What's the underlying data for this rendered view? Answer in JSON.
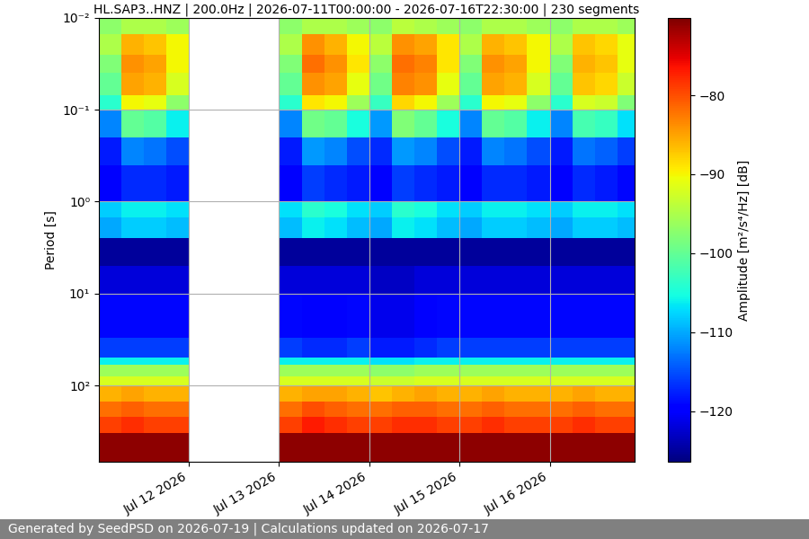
{
  "chart_data": {
    "type": "heatmap",
    "title": "HL.SAP3..HNZ | 200.0Hz | 2026-07-11T00:00:00 - 2026-07-16T22:30:00 | 230 segments",
    "y_label": "Period [s]",
    "log": "y",
    "grid": true,
    "color": "jet",
    "xlim": [
      "2026-07-11T00:00",
      "2026-07-16T22:30"
    ],
    "xticks": [
      {
        "value": "2026-07-12",
        "label": "Jul 12 2026"
      },
      {
        "value": "2026-07-13",
        "label": "Jul 13 2026"
      },
      {
        "value": "2026-07-14",
        "label": "Jul 14 2026"
      },
      {
        "value": "2026-07-15",
        "label": "Jul 15 2026"
      },
      {
        "value": "2026-07-16",
        "label": "Jul 16 2026"
      }
    ],
    "ylim": [
      680,
      0.01
    ],
    "yticks": [
      {
        "value": 0.01,
        "label": "10⁻²"
      },
      {
        "value": 0.1,
        "label": "10⁻¹"
      },
      {
        "value": 1,
        "label": "10⁰"
      },
      {
        "value": 10,
        "label": "10¹"
      },
      {
        "value": 100,
        "label": "10²"
      }
    ],
    "x_edges": [
      "2026-07-11T00:00",
      "2026-07-11T06:00",
      "2026-07-11T12:00",
      "2026-07-11T18:00",
      "2026-07-12T00:00",
      "2026-07-12T06:00",
      "2026-07-12T12:00",
      "2026-07-12T18:00",
      "2026-07-13T00:00",
      "2026-07-13T06:00",
      "2026-07-13T12:00",
      "2026-07-13T18:00",
      "2026-07-14T00:00",
      "2026-07-14T06:00",
      "2026-07-14T12:00",
      "2026-07-14T18:00",
      "2026-07-15T00:00",
      "2026-07-15T06:00",
      "2026-07-15T12:00",
      "2026-07-15T18:00",
      "2026-07-16T00:00",
      "2026-07-16T06:00",
      "2026-07-16T12:00",
      "2026-07-16T18:00",
      "2026-07-16T22:30"
    ],
    "y_edges": [
      0.01,
      0.015,
      0.025,
      0.04,
      0.07,
      0.1,
      0.2,
      0.4,
      1,
      1.5,
      2.5,
      5,
      10,
      30,
      50,
      60,
      80,
      100,
      150,
      220,
      330,
      680
    ],
    "cells": [
      [
        -97,
        -95,
        -95,
        -96,
        null,
        null,
        null,
        null,
        -97,
        -95,
        -95,
        -96,
        -97,
        -94,
        -95,
        -96,
        -97,
        -95,
        -95,
        -96,
        -97,
        -95,
        -95,
        -96
      ],
      [
        -95,
        -86,
        -87,
        -90,
        null,
        null,
        null,
        null,
        -95,
        -84,
        -86,
        -90,
        -94,
        -84,
        -85,
        -89,
        -95,
        -86,
        -87,
        -90,
        -95,
        -87,
        -88,
        -91
      ],
      [
        -98,
        -84,
        -85,
        -90,
        null,
        null,
        null,
        null,
        -98,
        -82,
        -84,
        -89,
        -97,
        -82,
        -83,
        -89,
        -98,
        -84,
        -85,
        -90,
        -98,
        -86,
        -87,
        -91
      ],
      [
        -100,
        -85,
        -86,
        -92,
        null,
        null,
        null,
        null,
        -100,
        -84,
        -85,
        -91,
        -99,
        -83,
        -84,
        -91,
        -100,
        -85,
        -86,
        -92,
        -100,
        -87,
        -88,
        -93
      ],
      [
        -104,
        -90,
        -91,
        -97,
        null,
        null,
        null,
        null,
        -104,
        -89,
        -90,
        -96,
        -103,
        -88,
        -90,
        -96,
        -104,
        -90,
        -91,
        -97,
        -104,
        -92,
        -93,
        -98
      ],
      [
        -112,
        -100,
        -101,
        -106,
        null,
        null,
        null,
        null,
        -112,
        -99,
        -100,
        -105,
        -111,
        -98,
        -100,
        -105,
        -112,
        -100,
        -101,
        -106,
        -112,
        -102,
        -103,
        -107
      ],
      [
        -118,
        -112,
        -113,
        -115,
        null,
        null,
        null,
        null,
        -118,
        -111,
        -112,
        -115,
        -117,
        -111,
        -112,
        -115,
        -118,
        -112,
        -113,
        -115,
        -118,
        -113,
        -114,
        -116
      ],
      [
        -120,
        -117,
        -117,
        -118,
        null,
        null,
        null,
        null,
        -120,
        -116,
        -117,
        -118,
        -120,
        -116,
        -117,
        -118,
        -120,
        -117,
        -117,
        -118,
        -120,
        -117,
        -118,
        -119
      ],
      [
        -108,
        -106,
        -106,
        -107,
        null,
        null,
        null,
        null,
        -107,
        -104,
        -105,
        -107,
        -108,
        -104,
        -105,
        -107,
        -108,
        -106,
        -106,
        -107,
        -108,
        -106,
        -106,
        -107
      ],
      [
        -110,
        -108,
        -108,
        -109,
        null,
        null,
        null,
        null,
        -109,
        -106,
        -107,
        -109,
        -110,
        -106,
        -107,
        -109,
        -110,
        -108,
        -108,
        -109,
        -110,
        -108,
        -108,
        -109
      ],
      [
        -125,
        -125,
        -125,
        -125,
        null,
        null,
        null,
        null,
        -125,
        -125,
        -125,
        -125,
        -125,
        -125,
        -125,
        -125,
        -125,
        -125,
        -125,
        -125,
        -125,
        -125,
        -125,
        -125
      ],
      [
        -122,
        -122,
        -122,
        -122,
        null,
        null,
        null,
        null,
        -122,
        -122,
        -122,
        -122,
        -123,
        -123,
        -122,
        -122,
        -122,
        -122,
        -122,
        -122,
        -122,
        -122,
        -122,
        -122
      ],
      [
        -119,
        -119,
        -119,
        -119,
        null,
        null,
        null,
        null,
        -119,
        -120,
        -120,
        -119,
        -121,
        -121,
        -120,
        -119,
        -119,
        -119,
        -119,
        -119,
        -119,
        -119,
        -119,
        -119
      ],
      [
        -116,
        -116,
        -116,
        -116,
        null,
        null,
        null,
        null,
        -116,
        -117,
        -117,
        -116,
        -118,
        -118,
        -117,
        -116,
        -116,
        -116,
        -116,
        -116,
        -116,
        -116,
        -116,
        -116
      ],
      [
        -106,
        -106,
        -106,
        -106,
        null,
        null,
        null,
        null,
        -106,
        -106,
        -106,
        -106,
        -107,
        -107,
        -106,
        -106,
        -106,
        -106,
        -106,
        -106,
        -106,
        -106,
        -106,
        -106
      ],
      [
        -96,
        -96,
        -96,
        -96,
        null,
        null,
        null,
        null,
        -96,
        -96,
        -96,
        -96,
        -97,
        -97,
        -96,
        -96,
        -96,
        -96,
        -96,
        -96,
        -96,
        -96,
        -96,
        -96
      ],
      [
        -92,
        -92,
        -92,
        -92,
        null,
        null,
        null,
        null,
        -92,
        -92,
        -92,
        -92,
        -93,
        -93,
        -92,
        -92,
        -92,
        -92,
        -92,
        -92,
        -92,
        -92,
        -92,
        -92
      ],
      [
        -86,
        -85,
        -86,
        -86,
        null,
        null,
        null,
        null,
        -86,
        -85,
        -85,
        -86,
        -87,
        -86,
        -85,
        -86,
        -86,
        -85,
        -86,
        -86,
        -86,
        -85,
        -86,
        -86
      ],
      [
        -82,
        -81,
        -82,
        -82,
        null,
        null,
        null,
        null,
        -82,
        -80,
        -81,
        -82,
        -82,
        -81,
        -81,
        -82,
        -82,
        -81,
        -82,
        -82,
        -82,
        -81,
        -82,
        -82
      ],
      [
        -79,
        -78,
        -79,
        -79,
        null,
        null,
        null,
        null,
        -79,
        -77,
        -78,
        -79,
        -79,
        -78,
        -78,
        -79,
        -79,
        -78,
        -79,
        -79,
        -79,
        -78,
        -79,
        -79
      ],
      [
        -71,
        -71,
        -71,
        -71,
        null,
        null,
        null,
        null,
        -71,
        -71,
        -71,
        -71,
        -71,
        -71,
        -71,
        -71,
        -71,
        -71,
        -71,
        -71,
        -71,
        -71,
        -71,
        -71
      ]
    ],
    "colorbar": {
      "label": "Amplitude [m²/s⁴/Hz] [dB]",
      "range": [
        -126.4,
        -70.2
      ],
      "ticks": [
        {
          "value": -80,
          "label": "−80"
        },
        {
          "value": -90,
          "label": "−90"
        },
        {
          "value": -100,
          "label": "−100"
        },
        {
          "value": -110,
          "label": "−110"
        },
        {
          "value": -120,
          "label": "−120"
        }
      ]
    },
    "footer": "Generated by SeedPSD on 2026-07-19 | Calculations updated on 2026-07-17"
  }
}
